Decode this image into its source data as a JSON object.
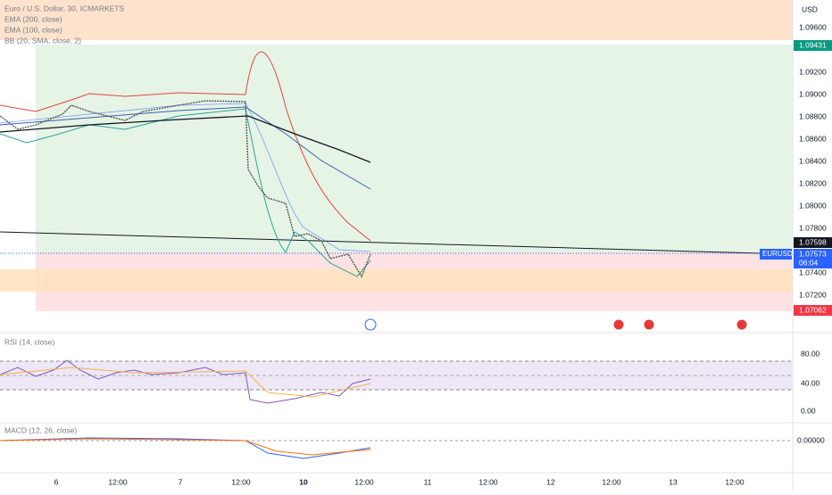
{
  "legend": {
    "title": "Euro / U.S. Dollar, 30, ICMARKETS",
    "indicators": [
      "EMA (200, close)",
      "EMA (100, close)",
      "BB (20, SMA, close, 2)"
    ]
  },
  "price_axis": {
    "currency": "USD",
    "labels": [
      "1.09600",
      "1.09200",
      "1.09000",
      "1.08800",
      "1.08600",
      "1.08400",
      "1.08200",
      "1.08000",
      "1.07800",
      "1.07400",
      "1.07200"
    ]
  },
  "price_tags": {
    "target": "1.09431",
    "ema": "1.07598",
    "symbol": "EURUSD",
    "last": "1.07573",
    "countdown": "06:04",
    "stop": "1.07062"
  },
  "rsi": {
    "label": "RSI (14, close)",
    "axis": [
      "80.00",
      "40.00",
      "0.00"
    ]
  },
  "macd": {
    "label": "MACD (12, 26, close)",
    "axis": [
      "0.00000"
    ]
  },
  "time_axis": [
    "6",
    "12:00",
    "7",
    "12:00",
    "10",
    "12:00",
    "11",
    "12:00",
    "12",
    "12:00",
    "13",
    "12:00"
  ]
}
